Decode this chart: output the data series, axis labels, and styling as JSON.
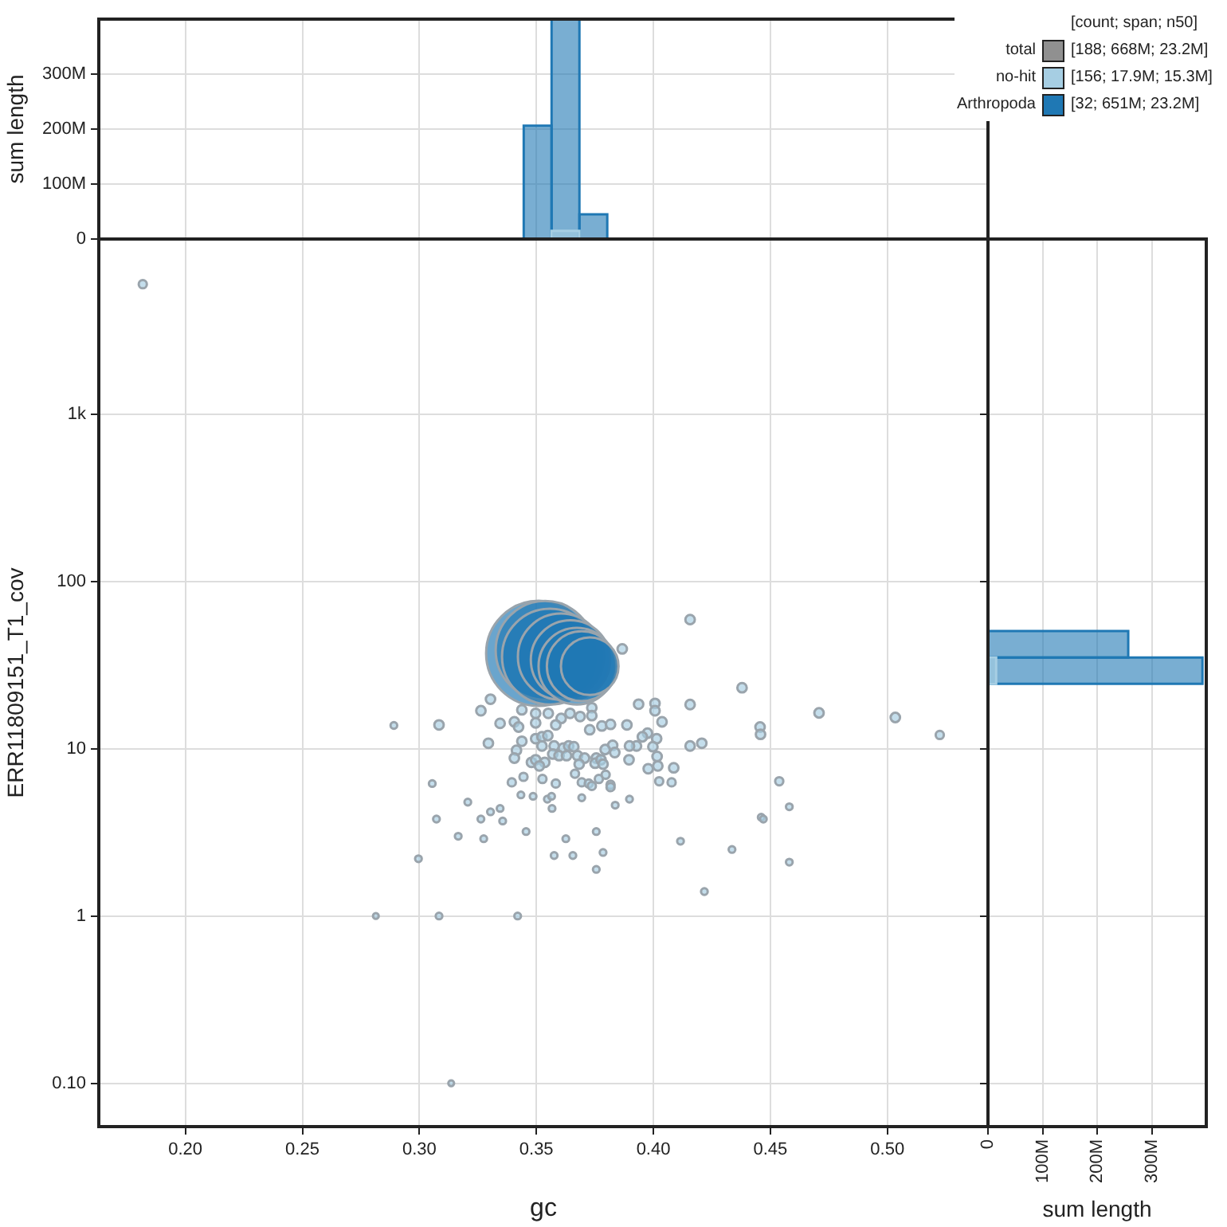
{
  "chart_data": [
    {
      "type": "histogram",
      "ylabel": "sum length",
      "bins": [
        0.3446,
        0.3565,
        0.3684,
        0.3803
      ],
      "series": [
        {
          "color": "#a6cee3",
          "values": [
            null,
            15000000,
            null
          ]
        },
        {
          "color": "#1f78b4",
          "values": [
            206000000,
            400000000,
            45000000
          ]
        }
      ],
      "xlim": [
        0.163,
        0.543
      ],
      "xticks": [
        {
          "value": 0.2,
          "label": null
        },
        {
          "value": 0.25,
          "label": null
        },
        {
          "value": 0.3,
          "label": null
        },
        {
          "value": 0.35,
          "label": null
        },
        {
          "value": 0.4,
          "label": null
        },
        {
          "value": 0.45,
          "label": null
        },
        {
          "value": 0.5,
          "label": null
        }
      ],
      "ylim": [
        0,
        400000000
      ],
      "yticks": [
        0,
        {
          "value": 100000000,
          "label": "100M"
        },
        {
          "value": 200000000,
          "label": "200M"
        },
        {
          "value": 300000000,
          "label": "300M"
        }
      ],
      "grid": true,
      "tick_labels": "y"
    },
    {
      "type": "bubble",
      "xlabel": "gc",
      "ylabel": "ERR11809151_T1_cov",
      "legend_title": "[count; span; n50]",
      "legend": "top right",
      "annotations": [
        "total",
        "[188; 668M; 23.2M]",
        "[156; 17.9M; 15.3M]",
        "[32; 651M; 23.2M]"
      ],
      "series": [
        {
          "name": "no-hit",
          "color": "#a6cee3",
          "x": [
            0.4157,
            0.3867,
            0.4379,
            0.3304,
            0.3263,
            0.3084,
            0.3345,
            0.3406,
            0.3424,
            0.3438,
            0.3497,
            0.3497,
            0.3551,
            0.3606,
            0.3583,
            0.3644,
            0.3687,
            0.3737,
            0.3737,
            0.3728,
            0.378,
            0.3817,
            0.3887,
            0.3937,
            0.4007,
            0.4007,
            0.4037,
            0.4157,
            0.3975,
            0.3953,
            0.4014,
            0.3928,
            0.3998,
            0.3898,
            0.3826,
            0.3794,
            0.3835,
            0.4157,
            0.4207,
            0.4456,
            0.4458,
            0.4708,
            0.3295,
            0.3438,
            0.3497,
            0.3524,
            0.3549,
            0.3524,
            0.3576,
            0.3615,
            0.3638,
            0.366,
            0.357,
            0.3597,
            0.3629,
            0.3415,
            0.3406,
            0.3479,
            0.3497,
            0.3536,
            0.3513,
            0.3676,
            0.3706,
            0.3683,
            0.3756,
            0.3751,
            0.3776,
            0.3785,
            0.3896,
            0.3978,
            0.4016,
            0.4019,
            0.4087,
            0.3665,
            0.3694,
            0.3724,
            0.3737,
            0.3767,
            0.3796,
            0.3817,
            0.3817,
            0.4025,
            0.4078,
            0.4538,
            0.3445,
            0.3526,
            0.3583,
            0.3395,
            0.3434,
            0.3486,
            0.3547,
            0.3565,
            0.3567,
            0.3694,
            0.3898,
            0.3837,
            0.3345,
            0.3304,
            0.3356,
            0.3263,
            0.3207,
            0.3073,
            0.3055,
            0.3166,
            0.3275,
            0.3456,
            0.3626,
            0.3756,
            0.3785,
            0.3576,
            0.3656,
            0.3756,
            0.4116,
            0.4336,
            0.4461,
            0.447,
            0.4581,
            0.4581,
            0.4218,
            0.2996,
            0.3084,
            0.342,
            0.1818,
            0.2814,
            0.3136,
            0.5034,
            0.5224,
            0.2891
          ],
          "values": [
            59.3,
            39.6,
            23.2,
            19.8,
            16.9,
            13.9,
            14.2,
            14.5,
            13.5,
            17.1,
            16.3,
            14.3,
            16.3,
            15.2,
            13.9,
            16.3,
            15.6,
            17.6,
            15.8,
            13.0,
            13.7,
            14.0,
            13.9,
            18.5,
            18.7,
            16.9,
            14.5,
            18.4,
            12.4,
            11.8,
            11.5,
            10.4,
            10.3,
            10.4,
            10.5,
            9.9,
            9.5,
            10.4,
            10.8,
            13.5,
            12.2,
            16.4,
            10.8,
            11.1,
            11.5,
            11.8,
            12.0,
            10.4,
            10.4,
            10.1,
            10.4,
            10.3,
            9.3,
            9.1,
            9.1,
            9.8,
            8.8,
            8.3,
            8.6,
            8.3,
            7.9,
            9.1,
            8.8,
            8.1,
            8.8,
            8.2,
            8.6,
            8.1,
            8.6,
            7.6,
            9.0,
            7.9,
            7.7,
            7.1,
            6.3,
            6.2,
            6.0,
            6.6,
            7.0,
            6.1,
            5.9,
            6.4,
            6.3,
            6.4,
            6.8,
            6.6,
            6.2,
            6.3,
            5.3,
            5.2,
            5.0,
            5.2,
            4.4,
            5.1,
            5.0,
            4.6,
            4.4,
            4.2,
            3.7,
            3.8,
            4.8,
            3.8,
            6.2,
            3.0,
            2.9,
            3.2,
            2.9,
            3.2,
            2.4,
            2.3,
            2.3,
            1.9,
            2.8,
            2.5,
            3.9,
            3.8,
            4.5,
            2.1,
            1.4,
            2.2,
            1.0,
            1.0,
            6010,
            1.0,
            0.1,
            15.4,
            12.1,
            13.8
          ],
          "sizes": [
            0.008,
            0.008,
            0.008,
            0.008,
            0.008,
            0.008,
            0.008,
            0.008,
            0.008,
            0.008,
            0.008,
            0.008,
            0.008,
            0.008,
            0.008,
            0.008,
            0.008,
            0.008,
            0.008,
            0.008,
            0.008,
            0.008,
            0.008,
            0.008,
            0.008,
            0.008,
            0.008,
            0.008,
            0.008,
            0.008,
            0.008,
            0.008,
            0.008,
            0.008,
            0.008,
            0.008,
            0.008,
            0.008,
            0.008,
            0.008,
            0.008,
            0.008,
            0.008,
            0.008,
            0.008,
            0.008,
            0.008,
            0.008,
            0.008,
            0.008,
            0.008,
            0.008,
            0.008,
            0.008,
            0.008,
            0.008,
            0.008,
            0.008,
            0.008,
            0.008,
            0.008,
            0.008,
            0.008,
            0.008,
            0.008,
            0.008,
            0.008,
            0.008,
            0.008,
            0.008,
            0.008,
            0.008,
            0.008,
            0.006,
            0.006,
            0.006,
            0.006,
            0.006,
            0.006,
            0.006,
            0.006,
            0.006,
            0.006,
            0.006,
            0.006,
            0.006,
            0.006,
            0.006,
            0.004,
            0.004,
            0.004,
            0.004,
            0.004,
            0.004,
            0.004,
            0.004,
            0.004,
            0.004,
            0.004,
            0.004,
            0.004,
            0.004,
            0.004,
            0.004,
            0.004,
            0.004,
            0.004,
            0.004,
            0.004,
            0.004,
            0.004,
            0.004,
            0.004,
            0.004,
            0.004,
            0.004,
            0.004,
            0.004,
            0.004,
            0.004,
            0.004,
            0.004,
            0.006,
            0.003,
            0.003,
            0.008,
            0.006,
            0.004
          ]
        },
        {
          "name": "Arthropoda",
          "color": "#1f78b4",
          "x": [
            0.351,
            0.3537,
            0.3558,
            0.3605,
            0.3646,
            0.3673,
            0.3694,
            0.3728
          ],
          "values": [
            37.2,
            38.8,
            35.6,
            35.6,
            34.0,
            31.2,
            31.2,
            31.2
          ],
          "sizes": [
            1,
            0.88,
            0.83,
            0.67,
            0.57,
            0.53,
            0.44,
            0.3
          ]
        }
      ],
      "xlim": [
        0.163,
        0.543
      ],
      "xticks": [
        {
          "value": 0.2,
          "label": "0.20"
        },
        {
          "value": 0.25,
          "label": "0.25"
        },
        {
          "value": 0.3,
          "label": "0.30"
        },
        {
          "value": 0.35,
          "label": "0.35"
        },
        {
          "value": 0.4,
          "label": "0.40"
        },
        {
          "value": 0.45,
          "label": "0.45"
        },
        {
          "value": 0.5,
          "label": "0.50"
        }
      ],
      "ylim": [
        0.055,
        11200
      ],
      "yticks": [
        {
          "value": 0.1,
          "label": "0.10"
        },
        1,
        10,
        100,
        {
          "value": 1000,
          "label": "1k"
        }
      ],
      "log": "y",
      "grid": true
    },
    {
      "type": "histogram",
      "orientation": "horizontal",
      "xlabel": "sum length",
      "bins": [
        24.5,
        35.2,
        50.6
      ],
      "series": [
        {
          "color": "#a6cee3",
          "values": [
            15000000,
            null
          ]
        },
        {
          "color": "#1f78b4",
          "values": [
            393000000,
            257000000
          ]
        }
      ],
      "xlim": [
        0,
        400000000
      ],
      "xticks": [
        0,
        {
          "value": 100000000,
          "label": "100M"
        },
        {
          "value": 200000000,
          "label": "200M"
        },
        {
          "value": 300000000,
          "label": "300M"
        }
      ],
      "ylim": [
        0.055,
        11200
      ],
      "yticks": [
        {
          "value": 0.1,
          "label": null
        },
        {
          "value": 1,
          "label": null
        },
        {
          "value": 10,
          "label": null
        },
        {
          "value": 100,
          "label": null
        },
        {
          "value": 1000,
          "label": null
        }
      ],
      "log": "y",
      "grid": true,
      "tick_labels": "x"
    }
  ]
}
